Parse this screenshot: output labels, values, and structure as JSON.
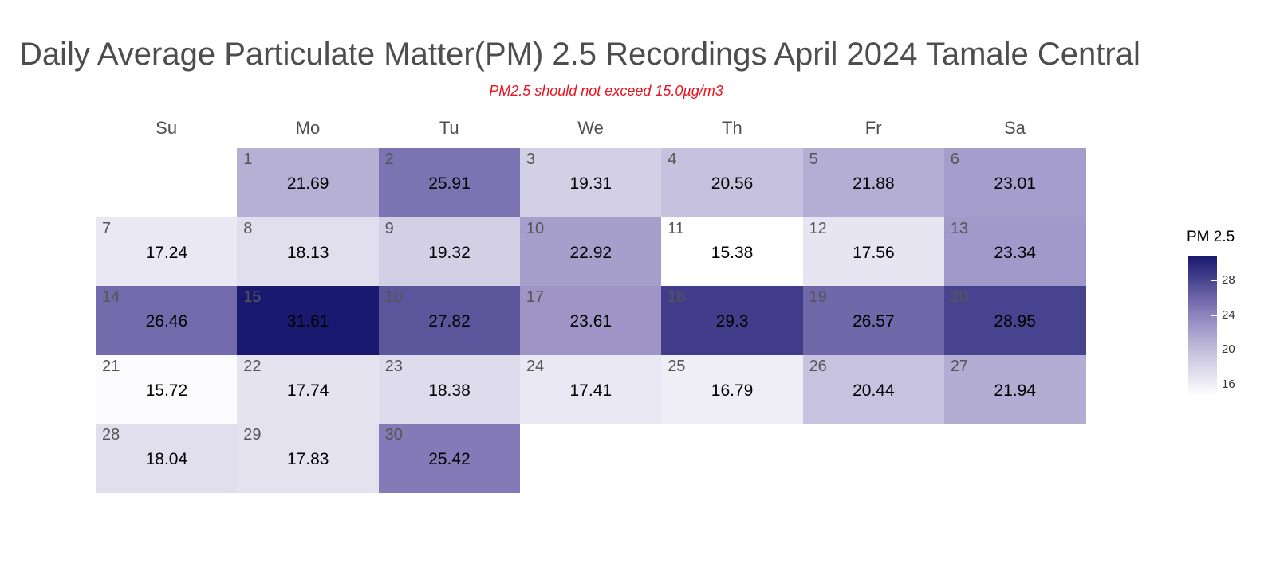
{
  "chart_data": {
    "type": "heatmap",
    "title": "Daily Average Particulate Matter(PM) 2.5 Recordings April 2024 Tamale Central",
    "subtitle": "PM2.5 should not exceed 15.0µg/m3",
    "weekdays": [
      "Su",
      "Mo",
      "Tu",
      "We",
      "Th",
      "Fr",
      "Sa"
    ],
    "first_weekday_index": 1,
    "days": [
      {
        "day": "1",
        "value": 21.69
      },
      {
        "day": "2",
        "value": 25.91
      },
      {
        "day": "3",
        "value": 19.31
      },
      {
        "day": "4",
        "value": 20.56
      },
      {
        "day": "5",
        "value": 21.88
      },
      {
        "day": "6",
        "value": 23.01
      },
      {
        "day": "7",
        "value": 17.24
      },
      {
        "day": "8",
        "value": 18.13
      },
      {
        "day": "9",
        "value": 19.32
      },
      {
        "day": "10",
        "value": 22.92
      },
      {
        "day": "11",
        "value": 15.38
      },
      {
        "day": "12",
        "value": 17.56
      },
      {
        "day": "13",
        "value": 23.34
      },
      {
        "day": "14",
        "value": 26.46
      },
      {
        "day": "15",
        "value": 31.61
      },
      {
        "day": "16",
        "value": 27.82
      },
      {
        "day": "17",
        "value": 23.61
      },
      {
        "day": "18",
        "value": 29.3
      },
      {
        "day": "19",
        "value": 26.57
      },
      {
        "day": "20",
        "value": 28.95
      },
      {
        "day": "21",
        "value": 15.72
      },
      {
        "day": "22",
        "value": 17.74
      },
      {
        "day": "23",
        "value": 18.38
      },
      {
        "day": "24",
        "value": 17.41
      },
      {
        "day": "25",
        "value": 16.79
      },
      {
        "day": "26",
        "value": 20.44
      },
      {
        "day": "27",
        "value": 21.94
      },
      {
        "day": "28",
        "value": 18.04
      },
      {
        "day": "29",
        "value": 17.83
      },
      {
        "day": "30",
        "value": 25.42
      }
    ],
    "legend": {
      "title": "PM 2.5",
      "placement": "right",
      "ticks": [
        "28",
        "24",
        "20",
        "16"
      ],
      "range": [
        15.38,
        31.61
      ],
      "color_low": "#ffffff",
      "color_high": "#191970"
    }
  }
}
